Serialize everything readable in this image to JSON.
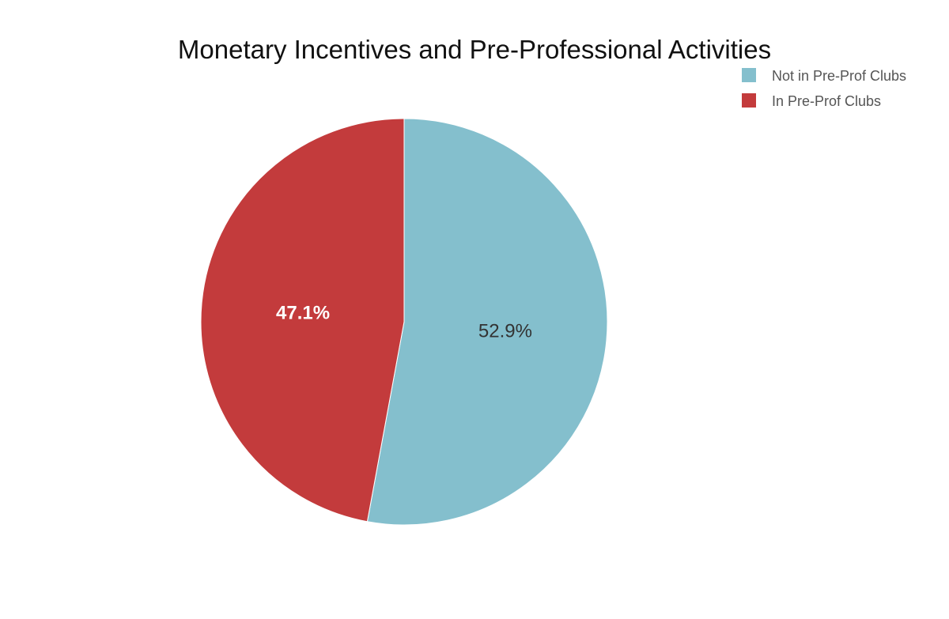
{
  "chart_data": {
    "type": "pie",
    "title": "Monetary Incentives and Pre-Professional Activities",
    "legend_position": "top-right",
    "slices": [
      {
        "label": "Not in Pre-Prof Clubs",
        "value": 52.9,
        "display": "52.9%",
        "color": "#84bfcd",
        "label_color": "#333333"
      },
      {
        "label": "In Pre-Prof Clubs",
        "value": 47.1,
        "display": "47.1%",
        "color": "#c33b3c",
        "label_color": "#ffffff"
      }
    ]
  }
}
